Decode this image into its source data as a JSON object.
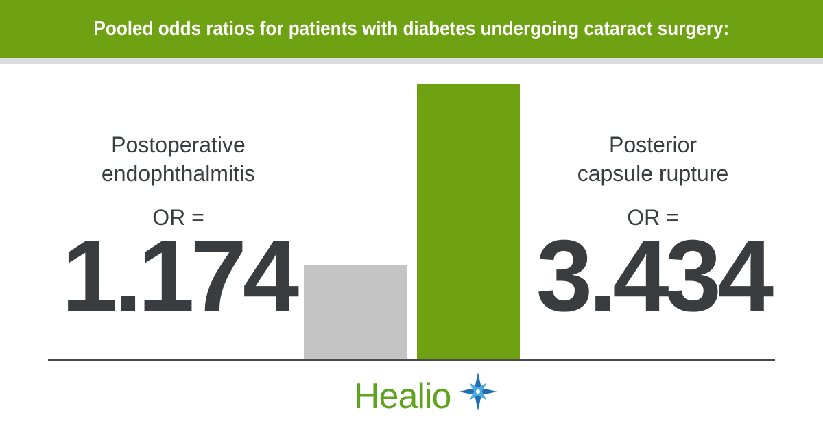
{
  "header": {
    "title": "Pooled odds ratios for patients with diabetes undergoing cataract surgery:"
  },
  "metrics": [
    {
      "label_line1": "Postoperative",
      "label_line2": "endophthalmitis",
      "or_label": "OR =",
      "value": "1.174"
    },
    {
      "label_line1": "Posterior",
      "label_line2": "capsule rupture",
      "or_label": "OR =",
      "value": "3.434"
    }
  ],
  "chart_data": {
    "type": "bar",
    "categories": [
      "Postoperative endophthalmitis",
      "Posterior capsule rupture"
    ],
    "values": [
      1.174,
      3.434
    ],
    "colors": [
      "#c4c4c4",
      "#6fa213"
    ],
    "title": "Pooled odds ratios for patients with diabetes undergoing cataract surgery:",
    "ylim": [
      0,
      3.434
    ]
  },
  "logo": {
    "text": "Healio",
    "icon": "star-burst-icon"
  },
  "colors": {
    "brand_green": "#6fa213",
    "header_stripe": "#dcdcdc",
    "text_dark": "#3a3d3f",
    "bar_gray": "#c4c4c4"
  }
}
